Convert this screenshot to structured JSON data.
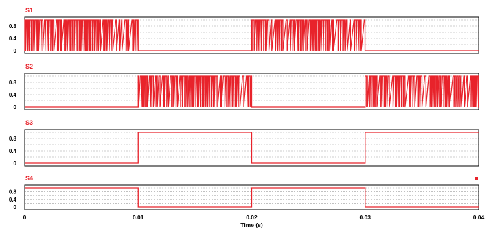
{
  "chart_data": {
    "type": "line",
    "xlabel": "Time (s)",
    "xlim": [
      0,
      0.04
    ],
    "x_ticks": [
      "0",
      "0.01",
      "0.02",
      "0.03",
      "0.04"
    ],
    "y_ticks": [
      "0.8",
      "0.4",
      "0"
    ],
    "ylim": [
      0,
      1
    ],
    "grid": true,
    "line_color": "#e8232b",
    "legend_marker_color": "#e8232b",
    "panels": [
      {
        "name": "S1",
        "kind": "pwm",
        "active_intervals": [
          [
            0,
            0.01
          ],
          [
            0.02,
            0.03
          ]
        ],
        "low_value": 0,
        "high_value": 1
      },
      {
        "name": "S2",
        "kind": "pwm",
        "active_intervals": [
          [
            0.01,
            0.02
          ],
          [
            0.03,
            0.04
          ]
        ],
        "low_value": 0,
        "high_value": 1
      },
      {
        "name": "S3",
        "kind": "square",
        "x": [
          0,
          0.01,
          0.01,
          0.02,
          0.02,
          0.03,
          0.03,
          0.04
        ],
        "y": [
          0,
          0,
          1,
          1,
          0,
          0,
          1,
          1
        ]
      },
      {
        "name": "S4",
        "kind": "square",
        "x": [
          0,
          0.01,
          0.01,
          0.02,
          0.02,
          0.03,
          0.03,
          0.04
        ],
        "y": [
          1,
          1,
          0,
          0,
          1,
          1,
          0,
          0
        ]
      }
    ]
  }
}
